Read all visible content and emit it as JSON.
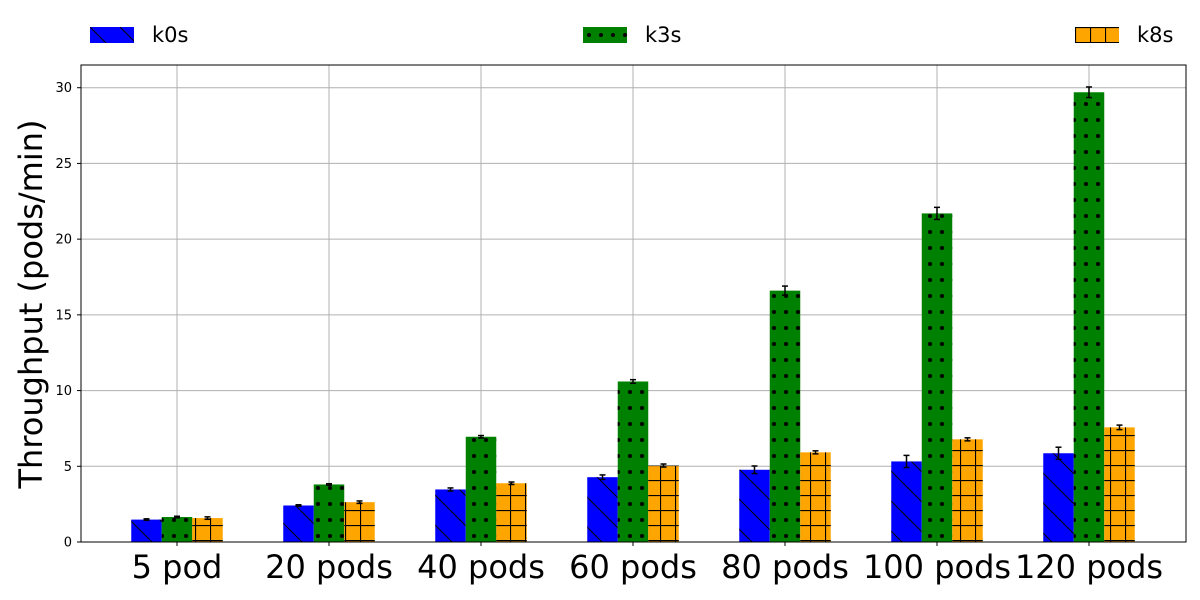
{
  "chart_data": {
    "type": "bar",
    "title": "",
    "xlabel": "",
    "ylabel": "Throughput (pods/min)",
    "ylim": [
      0,
      31.5
    ],
    "yticks": [
      0,
      5,
      10,
      15,
      20,
      25,
      30
    ],
    "grid": true,
    "legend_position": "top",
    "categories": [
      "5 pod",
      "20 pods",
      "40 pods",
      "60 pods",
      "80 pods",
      "100 pods",
      "120 pods"
    ],
    "series": [
      {
        "name": "k0s",
        "color": "#0000ff",
        "hatch": "diagonal",
        "values": [
          1.48,
          2.41,
          3.47,
          4.28,
          4.77,
          5.32,
          5.86
        ],
        "errors": [
          0.05,
          0.05,
          0.1,
          0.15,
          0.25,
          0.4,
          0.4
        ]
      },
      {
        "name": "k3s",
        "color": "#008000",
        "hatch": "dots",
        "values": [
          1.65,
          3.8,
          6.95,
          10.6,
          16.6,
          21.7,
          29.7
        ],
        "errors": [
          0.05,
          0.05,
          0.08,
          0.12,
          0.3,
          0.4,
          0.35
        ]
      },
      {
        "name": "k8s",
        "color": "#ffa500",
        "hatch": "grid",
        "values": [
          1.58,
          2.63,
          3.88,
          5.05,
          5.92,
          6.78,
          7.57
        ],
        "errors": [
          0.08,
          0.08,
          0.08,
          0.1,
          0.1,
          0.1,
          0.15
        ]
      }
    ]
  }
}
